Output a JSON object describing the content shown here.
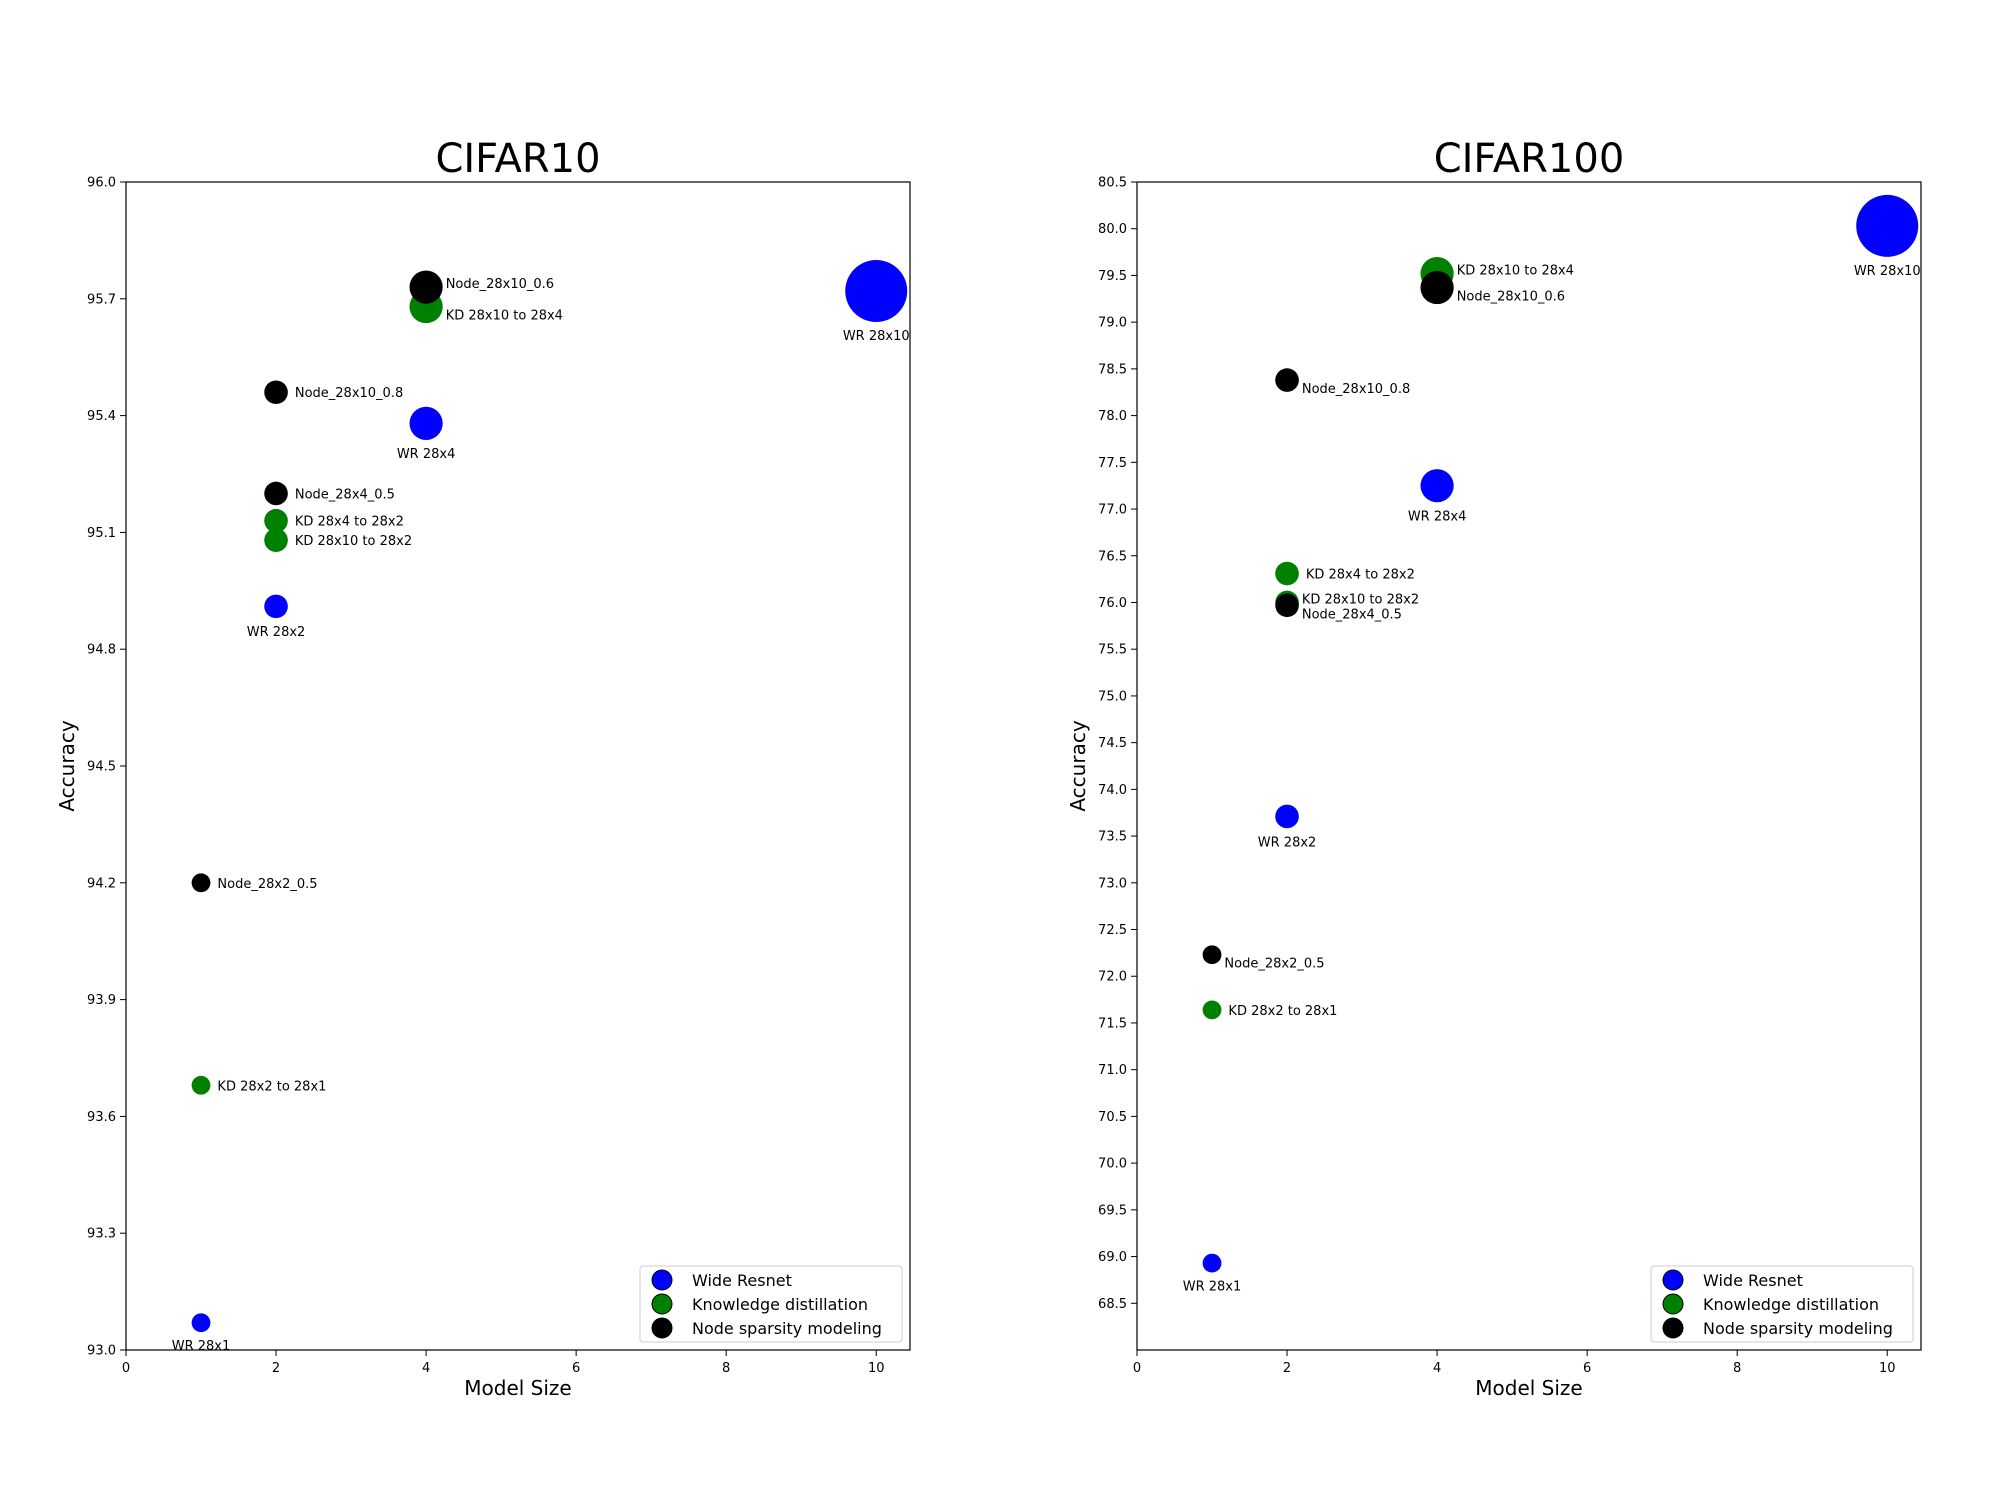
{
  "chart_data": [
    {
      "type": "scatter",
      "title": "CIFAR10",
      "xlabel": "Model Size",
      "ylabel": "Accuracy",
      "xlim": [
        0,
        10.45
      ],
      "ylim": [
        93.0,
        96.0
      ],
      "xticks": [
        "0",
        "2",
        "4",
        "6",
        "8",
        "10"
      ],
      "yticks": [
        "93.0",
        "93.3",
        "93.6",
        "93.9",
        "94.2",
        "94.5",
        "94.8",
        "95.1",
        "95.4",
        "95.7",
        "96.0"
      ],
      "legend_position": "lower-right",
      "grid": false,
      "series": [
        {
          "name": "Wide Resnet",
          "color": "#0000ff",
          "points": [
            {
              "x": 1,
              "y": 93.07,
              "label": "WR 28x1"
            },
            {
              "x": 2,
              "y": 94.91,
              "label": "WR 28x2"
            },
            {
              "x": 4,
              "y": 95.38,
              "label": "WR 28x4"
            },
            {
              "x": 10,
              "y": 95.72,
              "label": "WR 28x10"
            }
          ]
        },
        {
          "name": "Knowledge distillation",
          "color": "#008000",
          "points": [
            {
              "x": 1,
              "y": 93.68,
              "label": "KD 28x2 to 28x1"
            },
            {
              "x": 2,
              "y": 95.08,
              "label": "KD 28x10 to 28x2"
            },
            {
              "x": 2,
              "y": 95.13,
              "label": "KD 28x4 to 28x2"
            },
            {
              "x": 4,
              "y": 95.68,
              "label": "KD 28x10 to 28x4"
            }
          ]
        },
        {
          "name": "Node sparsity modeling",
          "color": "#000000",
          "points": [
            {
              "x": 1,
              "y": 94.2,
              "label": "Node_28x2_0.5"
            },
            {
              "x": 2,
              "y": 95.2,
              "label": "Node_28x4_0.5"
            },
            {
              "x": 2,
              "y": 95.46,
              "label": "Node_28x10_0.8"
            },
            {
              "x": 4,
              "y": 95.73,
              "label": "Node_28x10_0.6"
            }
          ]
        }
      ]
    },
    {
      "type": "scatter",
      "title": "CIFAR100",
      "xlabel": "Model Size",
      "ylabel": "Accuracy",
      "xlim": [
        0,
        10.45
      ],
      "ylim": [
        68.0,
        80.5
      ],
      "xticks": [
        "0",
        "2",
        "4",
        "6",
        "8",
        "10"
      ],
      "yticks": [
        "68.5",
        "69.0",
        "69.5",
        "70.0",
        "70.5",
        "71.0",
        "71.5",
        "72.0",
        "72.5",
        "73.0",
        "73.5",
        "74.0",
        "74.5",
        "75.0",
        "75.5",
        "76.0",
        "76.5",
        "77.0",
        "77.5",
        "78.0",
        "78.5",
        "79.0",
        "79.5",
        "80.0",
        "80.5"
      ],
      "legend_position": "lower-right",
      "grid": false,
      "series": [
        {
          "name": "Wide Resnet",
          "color": "#0000ff",
          "points": [
            {
              "x": 1,
              "y": 68.93,
              "label": "WR 28x1"
            },
            {
              "x": 2,
              "y": 73.71,
              "label": "WR 28x2"
            },
            {
              "x": 4,
              "y": 77.25,
              "label": "WR 28x4"
            },
            {
              "x": 10,
              "y": 80.03,
              "label": "WR 28x10"
            }
          ]
        },
        {
          "name": "Knowledge distillation",
          "color": "#008000",
          "points": [
            {
              "x": 1,
              "y": 71.64,
              "label": "KD 28x2 to 28x1"
            },
            {
              "x": 2,
              "y": 76.0,
              "label": "KD 28x10 to 28x2"
            },
            {
              "x": 2,
              "y": 76.31,
              "label": "KD 28x4 to 28x2"
            },
            {
              "x": 4,
              "y": 79.52,
              "label": "KD 28x10 to 28x4"
            }
          ]
        },
        {
          "name": "Node sparsity modeling",
          "color": "#000000",
          "points": [
            {
              "x": 1,
              "y": 72.23,
              "label": "Node_28x2_0.5"
            },
            {
              "x": 2,
              "y": 75.97,
              "label": "Node_28x4_0.5"
            },
            {
              "x": 2,
              "y": 78.38,
              "label": "Node_28x10_0.8"
            },
            {
              "x": 4,
              "y": 79.37,
              "label": "Node_28x10_0.6"
            }
          ]
        }
      ]
    }
  ]
}
